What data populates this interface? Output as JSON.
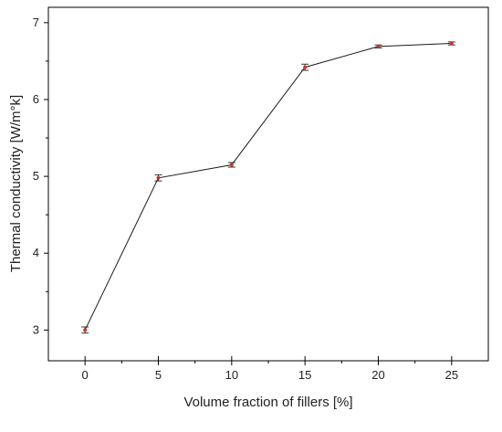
{
  "chart_data": {
    "type": "line",
    "xlabel": "Volume fraction of fillers [%]",
    "ylabel": "Thermal conductivity [W/m°k]",
    "x": [
      0,
      5,
      10,
      15,
      20,
      25
    ],
    "series": [
      {
        "values": [
          3.0,
          4.98,
          5.15,
          6.42,
          6.69,
          6.73
        ],
        "errors": [
          0.04,
          0.04,
          0.03,
          0.04,
          0.02,
          0.02
        ],
        "color": "#1a1a1a",
        "marker_color": "#c0392b"
      }
    ],
    "xlim": [
      -2.5,
      27.5
    ],
    "ylim": [
      2.6,
      7.2
    ],
    "xticks": [
      "0",
      "5",
      "10",
      "15",
      "20",
      "25"
    ],
    "yticks": [
      "3",
      "4",
      "5",
      "6",
      "7"
    ],
    "grid": false
  }
}
